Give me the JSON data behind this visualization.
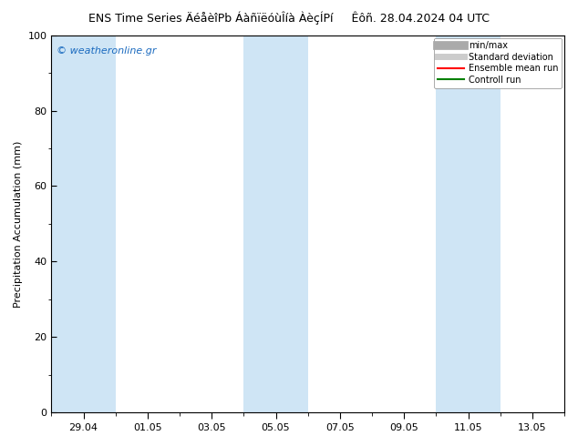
{
  "title_left": "ENS Time Series ÄéåèîPb ÁàñïëóùÎíà ÀèçÍPí",
  "title_right": "Êôñ. 28.04.2024 04 UTC",
  "ylabel": "Precipitation Accumulation (mm)",
  "watermark": "© weatheronline.gr",
  "watermark_color": "#1a6abf",
  "ylim": [
    0,
    100
  ],
  "yticks": [
    0,
    20,
    40,
    60,
    80,
    100
  ],
  "background_color": "#ffffff",
  "plot_bg_color": "#ffffff",
  "xlim": [
    0,
    16
  ],
  "x_tick_labels": [
    "29.04",
    "01.05",
    "03.05",
    "05.05",
    "07.05",
    "09.05",
    "11.05",
    "13.05"
  ],
  "x_tick_positions": [
    1,
    3,
    5,
    7,
    9,
    11,
    13,
    15
  ],
  "shaded_bands": [
    {
      "x_start": 0.0,
      "x_end": 2.0,
      "color": "#cfe5f5"
    },
    {
      "x_start": 6.0,
      "x_end": 8.0,
      "color": "#cfe5f5"
    },
    {
      "x_start": 12.0,
      "x_end": 14.0,
      "color": "#cfe5f5"
    }
  ],
  "legend_items": [
    {
      "label": "min/max",
      "color": "#aaaaaa",
      "lw": 7
    },
    {
      "label": "Standard deviation",
      "color": "#cccccc",
      "lw": 5
    },
    {
      "label": "Ensemble mean run",
      "color": "#ff0000",
      "lw": 1.5
    },
    {
      "label": "Controll run",
      "color": "#008000",
      "lw": 1.5
    }
  ],
  "spine_color": "#000000",
  "tick_color": "#000000",
  "title_fontsize": 9,
  "label_fontsize": 8,
  "tick_fontsize": 8,
  "legend_fontsize": 7,
  "watermark_fontsize": 8
}
